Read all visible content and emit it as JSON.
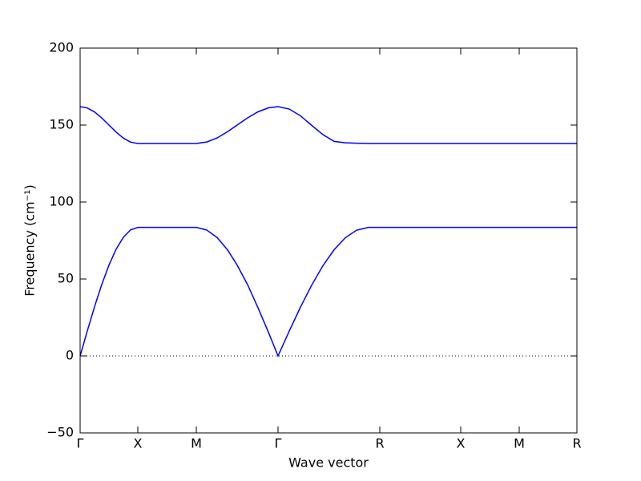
{
  "chart_data": {
    "type": "line",
    "x_label": "Wave vector",
    "y_label": "Frequency (cm⁻¹)",
    "x": [
      0,
      9,
      18,
      27,
      36,
      45,
      54,
      63,
      72,
      145,
      158,
      171,
      184,
      196,
      209,
      222,
      235,
      247,
      261,
      275,
      289,
      303,
      317,
      331,
      345,
      360,
      374,
      475,
      548,
      620
    ],
    "series": [
      {
        "color": "#0000ff",
        "values": [
          0,
          16.3,
          32.0,
          46.4,
          59.0,
          69.4,
          77.1,
          81.9,
          83.5,
          83.5,
          81.8,
          76.9,
          68.9,
          59.0,
          46.3,
          31.3,
          15.4,
          0,
          16.2,
          31.7,
          46.0,
          58.6,
          69.0,
          76.8,
          81.7,
          83.5,
          83.5,
          83.5,
          83.5,
          83.5
        ]
      },
      {
        "color": "#0000ff",
        "values": [
          162,
          161.1,
          158.5,
          154.6,
          150,
          145.4,
          141.5,
          138.9,
          138,
          138,
          139.0,
          141.6,
          145.7,
          150,
          154.7,
          158.6,
          161.2,
          162,
          160.4,
          156.0,
          149.8,
          143.8,
          139.4,
          138.5,
          138.2,
          138,
          138,
          138,
          138,
          138
        ]
      }
    ],
    "xlim": [
      0,
      620
    ],
    "xticks": [
      {
        "value": 0,
        "label": "Γ"
      },
      {
        "value": 72,
        "label": "X"
      },
      {
        "value": 145,
        "label": "M"
      },
      {
        "value": 247,
        "label": "Γ"
      },
      {
        "value": 374,
        "label": "R"
      },
      {
        "value": 475,
        "label": "X"
      },
      {
        "value": 548,
        "label": "M"
      },
      {
        "value": 620,
        "label": "R"
      }
    ],
    "ylim": [
      -50,
      200
    ],
    "yticks": [
      {
        "value": -50,
        "label": "−50"
      },
      0,
      50,
      100,
      150,
      200
    ],
    "hline": 0
  }
}
